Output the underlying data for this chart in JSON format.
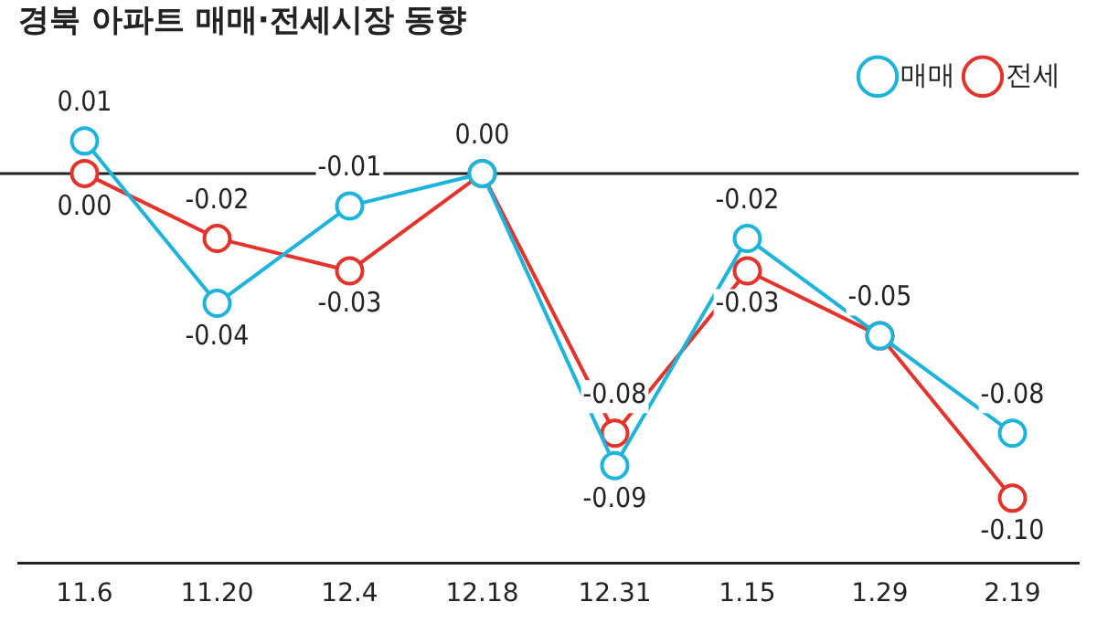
{
  "chart_data": {
    "type": "line",
    "title": "경북 아파트 매매·전세시장 동향",
    "categories": [
      "11.6",
      "11.20",
      "12.4",
      "12.18",
      "12.31",
      "1.15",
      "1.29",
      "2.19"
    ],
    "series": [
      {
        "name": "매매",
        "color": "#1cb4dc",
        "values": [
          0.01,
          -0.04,
          -0.01,
          0.0,
          -0.09,
          -0.02,
          -0.05,
          -0.08
        ],
        "value_labels": [
          "0.01",
          "-0.04",
          "-0.01",
          "0.00",
          "-0.09",
          "-0.02",
          "-0.05",
          "-0.08"
        ]
      },
      {
        "name": "전세",
        "color": "#e5322a",
        "values": [
          0.0,
          -0.02,
          -0.03,
          0.0,
          -0.08,
          -0.03,
          -0.05,
          -0.1
        ],
        "value_labels": [
          "0.00",
          "-0.02",
          "-0.03",
          null,
          "-0.08",
          "-0.03",
          null,
          "-0.10"
        ]
      }
    ],
    "marker": "circle",
    "line_style": "solid",
    "legend": "top right",
    "grid": false,
    "ref_lines": [
      {
        "axis": "y",
        "value": 0,
        "color": "#222222"
      }
    ]
  }
}
